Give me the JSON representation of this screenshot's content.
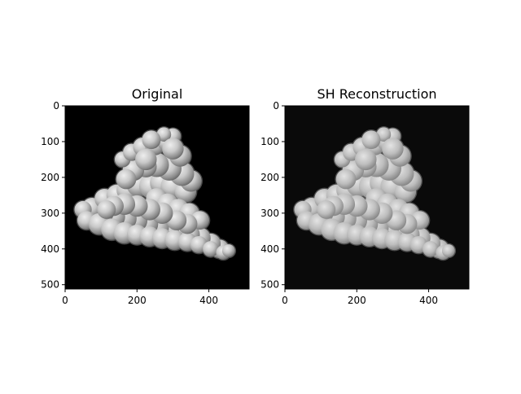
{
  "figure": {
    "panels": [
      {
        "title": "Original",
        "background": "#000000",
        "xticks": [
          "0",
          "200",
          "400"
        ],
        "yticks": [
          "0",
          "100",
          "200",
          "300",
          "400",
          "500"
        ]
      },
      {
        "title": "SH Reconstruction",
        "background": "#0a0a0a",
        "xticks": [
          "0",
          "200",
          "400"
        ],
        "yticks": [
          "0",
          "100",
          "200",
          "300",
          "400",
          "500"
        ]
      }
    ],
    "colors": {
      "object_light": "#e6e6e6",
      "object_mid": "#a8a8a8",
      "object_dark": "#5a5a5a",
      "axis": "#000000"
    }
  }
}
